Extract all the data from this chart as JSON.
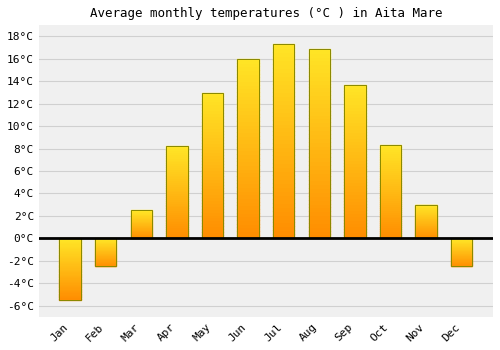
{
  "title": "Average monthly temperatures (°C ) in Aita Mare",
  "months": [
    "Jan",
    "Feb",
    "Mar",
    "Apr",
    "May",
    "Jun",
    "Jul",
    "Aug",
    "Sep",
    "Oct",
    "Nov",
    "Dec"
  ],
  "values": [
    -5.5,
    -2.5,
    2.5,
    8.2,
    13.0,
    16.0,
    17.3,
    16.9,
    13.7,
    8.3,
    3.0,
    -2.5
  ],
  "bar_color": "#FFA500",
  "bar_edge_color": "#888800",
  "ylim": [
    -7,
    19
  ],
  "yticks": [
    -6,
    -4,
    -2,
    0,
    2,
    4,
    6,
    8,
    10,
    12,
    14,
    16,
    18
  ],
  "ytick_labels": [
    "-6°C",
    "-4°C",
    "-2°C",
    "0°C",
    "2°C",
    "4°C",
    "6°C",
    "8°C",
    "10°C",
    "12°C",
    "14°C",
    "16°C",
    "18°C"
  ],
  "background_color": "#ffffff",
  "plot_bg_color": "#f0f0f0",
  "grid_color": "#d0d0d0",
  "title_fontsize": 9,
  "tick_fontsize": 8,
  "bar_width": 0.6
}
